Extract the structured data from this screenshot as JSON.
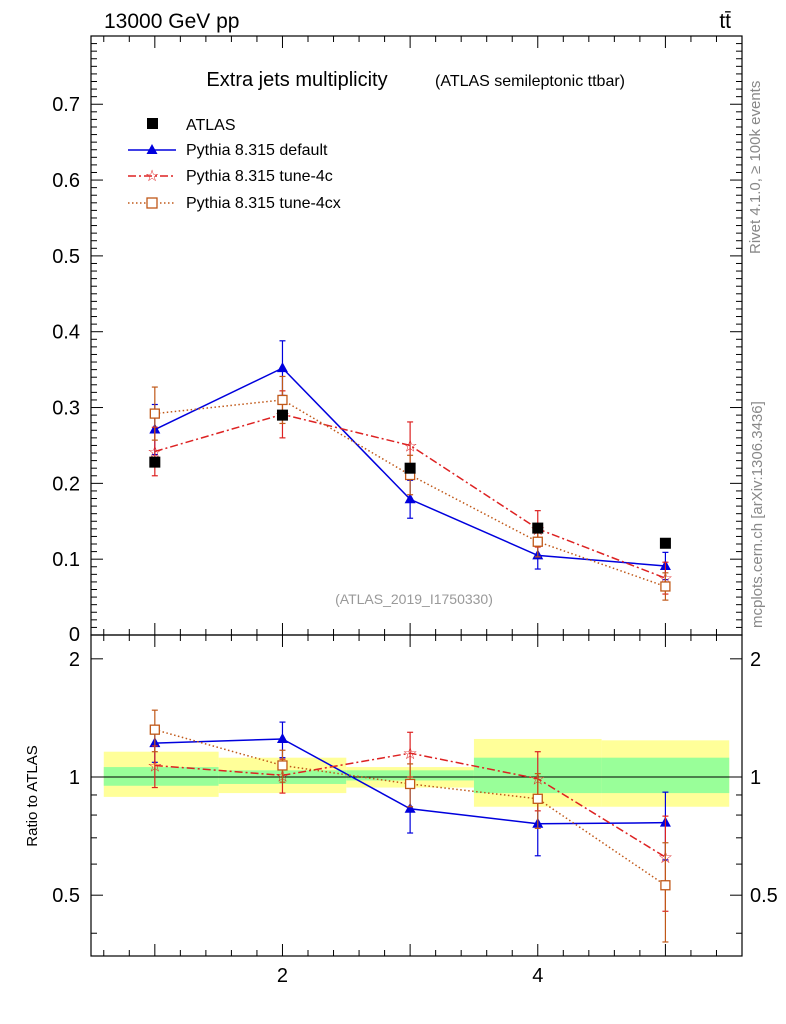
{
  "header": {
    "energy_label": "13000 GeV pp",
    "process_label": "tt̄"
  },
  "side_labels": {
    "rivet": "Rivet 4.1.0, ≥ 100k events",
    "mcplots": "mcplots.cern.ch [arXiv:1306.3436]"
  },
  "colors": {
    "atlas": "#000000",
    "default": "#0000dd",
    "tune4c": "#dd2222",
    "tune4cx": "#c05818",
    "band_inner": "#99ff99",
    "band_outer": "#ffff99"
  },
  "chart_data": [
    {
      "type": "line",
      "panel": "main",
      "title": "Extra jets multiplicity",
      "subtitle": "(ATLAS semileptonic ttbar)",
      "watermark": "(ATLAS_2019_I1750330)",
      "xlabel": "",
      "ylabel": "",
      "xlim": [
        0.5,
        5.6
      ],
      "ylim": [
        0.0,
        0.79
      ],
      "y_ticks": [
        0.1,
        0.2,
        0.3,
        0.4,
        0.5,
        0.6,
        0.7
      ],
      "y_tick_labels": [
        "0.1",
        "0.2",
        "0.3",
        "0.4",
        "0.5",
        "0.6",
        "0.7"
      ],
      "y_bottom_tick_label": "0",
      "legend_position": "top-left",
      "legend": [
        "ATLAS",
        "Pythia 8.315 default",
        "Pythia 8.315 tune-4c",
        "Pythia 8.315 tune-4cx"
      ],
      "x": [
        1,
        2,
        3,
        4,
        5
      ],
      "series": [
        {
          "name": "ATLAS",
          "marker": "square-filled",
          "values": [
            0.228,
            0.29,
            0.22,
            0.141,
            0.121
          ],
          "errors": [
            0,
            0,
            0,
            0,
            0
          ]
        },
        {
          "name": "Pythia 8.315 default",
          "marker": "triangle",
          "style": "solid",
          "values": [
            0.271,
            0.352,
            0.179,
            0.105,
            0.091
          ],
          "errors": [
            0.033,
            0.036,
            0.025,
            0.018,
            0.018
          ]
        },
        {
          "name": "Pythia 8.315 tune-4c",
          "marker": "star",
          "style": "dashdot",
          "values": [
            0.242,
            0.291,
            0.25,
            0.14,
            0.075
          ],
          "errors": [
            0.032,
            0.031,
            0.031,
            0.024,
            0.021
          ]
        },
        {
          "name": "Pythia 8.315 tune-4cx",
          "marker": "open-square",
          "style": "dotted",
          "values": [
            0.292,
            0.31,
            0.211,
            0.123,
            0.064
          ],
          "errors": [
            0.035,
            0.031,
            0.026,
            0.02,
            0.018
          ]
        }
      ]
    },
    {
      "type": "line",
      "panel": "ratio",
      "ylabel": "Ratio to ATLAS",
      "xlim": [
        0.5,
        5.6
      ],
      "ylim": [
        0.35,
        2.3
      ],
      "y_ticks": [
        0.5,
        1,
        2
      ],
      "y_tick_labels": [
        "0.5",
        "1",
        "2"
      ],
      "x_ticks": [
        2,
        4
      ],
      "x_tick_labels": [
        "2",
        "4"
      ],
      "x": [
        1,
        2,
        3,
        4,
        5
      ],
      "bands": {
        "bin_edges": [
          0.6,
          1.5,
          2.5,
          3.5,
          4.5,
          5.5
        ],
        "inner_low": [
          0.95,
          0.96,
          0.98,
          0.91,
          0.91
        ],
        "inner_high": [
          1.06,
          1.04,
          1.04,
          1.12,
          1.12
        ],
        "outer_low": [
          0.89,
          0.91,
          0.94,
          0.84,
          0.84
        ],
        "outer_high": [
          1.16,
          1.12,
          1.06,
          1.25,
          1.24
        ]
      },
      "series": [
        {
          "name": "Pythia 8.315 default",
          "values": [
            1.22,
            1.25,
            0.83,
            0.76,
            0.765
          ],
          "errors": [
            0.13,
            0.13,
            0.11,
            0.13,
            0.15
          ]
        },
        {
          "name": "Pythia 8.315 tune-4c",
          "values": [
            1.07,
            1.01,
            1.15,
            0.99,
            0.625
          ],
          "errors": [
            0.13,
            0.1,
            0.15,
            0.17,
            0.17
          ]
        },
        {
          "name": "Pythia 8.315 tune-4cx",
          "values": [
            1.32,
            1.07,
            0.96,
            0.88,
            0.53
          ],
          "errors": [
            0.16,
            0.1,
            0.12,
            0.14,
            0.15
          ]
        }
      ]
    }
  ]
}
